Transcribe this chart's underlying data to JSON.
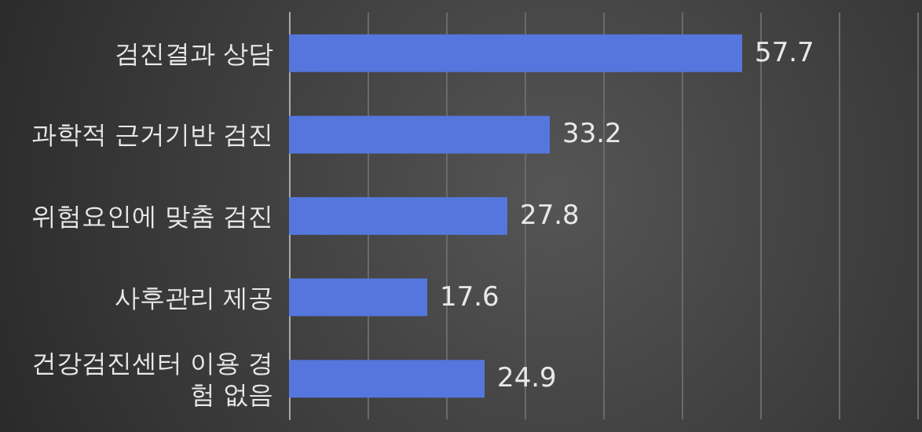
{
  "chart_data": {
    "type": "bar",
    "orientation": "horizontal",
    "categories": [
      "검진결과 상담",
      "과학적 근거기반 검진",
      "위험요인에 맞춤 검진",
      "사후관리 제공",
      "건강검진센터 이용 경험 없음"
    ],
    "values": [
      57.7,
      33.2,
      27.8,
      17.6,
      24.9
    ],
    "color": "#5577dd",
    "xlim": [
      0,
      80
    ],
    "xticks": [
      {
        "value": 0,
        "label": null
      },
      {
        "value": 10,
        "label": null
      },
      {
        "value": 20,
        "label": null
      },
      {
        "value": 30,
        "label": null
      },
      {
        "value": 40,
        "label": null
      },
      {
        "value": 50,
        "label": null
      },
      {
        "value": 60,
        "label": null
      },
      {
        "value": 70,
        "label": null
      },
      {
        "value": 80,
        "label": null
      }
    ],
    "grid": "x",
    "data_labels": true
  }
}
